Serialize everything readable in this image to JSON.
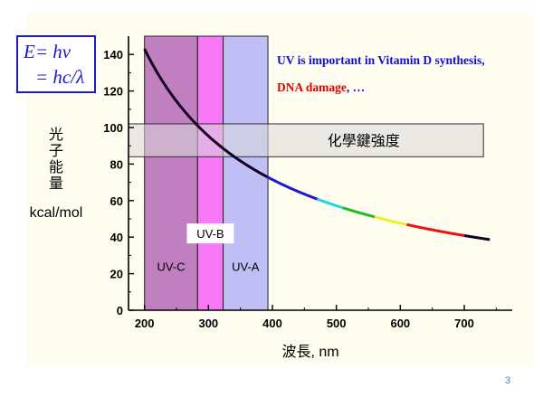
{
  "slide": {
    "formula_line1": "E= hν",
    "formula_line2": "= hc/λ",
    "annotation_line1": "UV is important in Vitamin D synthesis,",
    "annotation_line2_red": "DNA damage",
    "annotation_line2_rest": ", …",
    "page_number": "3",
    "colors": {
      "background_panel": "#fffdf0",
      "annotation_blue": "#1010d0",
      "annotation_red": "#e00000",
      "formula_border": "#1a1acc",
      "page_number": "#3a7fd0"
    }
  },
  "chart_data": {
    "type": "line",
    "xlabel": "波長, nm",
    "ylabel_chars": [
      "光",
      "子",
      "能",
      "量"
    ],
    "ylabel_unit": "kcal/mol",
    "xlim": [
      175,
      775
    ],
    "ylim": [
      0,
      150
    ],
    "xticks": [
      200,
      300,
      400,
      500,
      600,
      700
    ],
    "yticks": [
      0,
      20,
      40,
      60,
      80,
      100,
      120,
      140
    ],
    "curve": {
      "constant": 28600,
      "x_start": 200,
      "x_end": 740
    },
    "spectrum_segments": [
      {
        "x0": 392,
        "x1": 470,
        "color": "#1a1acc"
      },
      {
        "x0": 470,
        "x1": 510,
        "color": "#22d4e8"
      },
      {
        "x0": 510,
        "x1": 560,
        "color": "#22bb22"
      },
      {
        "x0": 560,
        "x1": 610,
        "color": "#f0f020"
      },
      {
        "x0": 610,
        "x1": 700,
        "color": "#ee1111"
      }
    ],
    "regions": [
      {
        "name": "UV-C",
        "label": "UV-C",
        "x0": 200,
        "x1": 283,
        "color": "#c080c0",
        "label_y": 24
      },
      {
        "name": "UV-B",
        "label": "UV-B",
        "x0": 283,
        "x1": 323,
        "color": "#f878f8",
        "label_y": 42
      },
      {
        "name": "UV-A",
        "label": "UV-A",
        "x0": 323,
        "x1": 393,
        "color": "#bfbff5",
        "label_y": 24
      }
    ],
    "bond_band": {
      "label": "化學鍵強度",
      "x0": 175,
      "x1": 730,
      "y0": 84,
      "y1": 102,
      "color": "#d8d8d8"
    }
  }
}
